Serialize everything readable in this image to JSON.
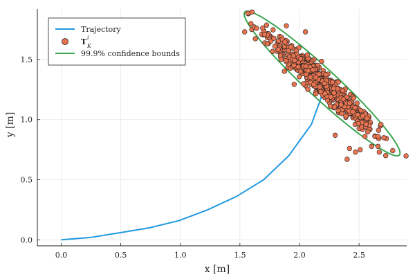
{
  "chart_data": {
    "type": "scatter",
    "xlabel": "x [m]",
    "ylabel": "y [m]",
    "xlim": [
      -0.2,
      2.9
    ],
    "ylim": [
      -0.05,
      1.92
    ],
    "xticks": [
      "0.0",
      "0.5",
      "1.0",
      "1.5",
      "2.0",
      "2.5"
    ],
    "yticks": [
      "0.0",
      "0.5",
      "1.0",
      "1.5"
    ],
    "grid": true,
    "legend_position": "top-left",
    "colors": {
      "trajectory": "#1f98e0",
      "samples": "#e8734f",
      "bounds": "#3aa64f"
    },
    "legend": [
      {
        "label": "Trajectory"
      },
      {
        "label": "T",
        "superscript": "i",
        "subscript": "K"
      },
      {
        "label": "99.9% confidence bounds"
      }
    ],
    "trajectory": {
      "x": [
        0.0,
        0.25,
        0.5,
        0.74,
        0.99,
        1.23,
        1.47,
        1.7,
        1.91,
        2.1,
        2.17,
        2.22
      ],
      "y": [
        0.0,
        0.02,
        0.06,
        0.1,
        0.16,
        0.25,
        0.36,
        0.5,
        0.7,
        0.96,
        1.15,
        1.3
      ]
    },
    "confidence_ellipse": {
      "center": [
        2.19,
        1.3
      ],
      "semi_axes": [
        0.88,
        0.122
      ],
      "angle_deg": -42.5
    },
    "samples": {
      "count": 700,
      "mean": [
        2.19,
        1.3
      ],
      "extreme_points": [
        [
          1.54,
          1.73
        ],
        [
          1.6,
          1.75
        ],
        [
          1.62,
          1.77
        ],
        [
          1.64,
          1.76
        ],
        [
          1.73,
          1.63
        ],
        [
          1.89,
          1.78
        ],
        [
          2.05,
          1.73
        ],
        [
          2.47,
          0.73
        ],
        [
          2.42,
          0.76
        ],
        [
          2.51,
          0.75
        ],
        [
          2.4,
          0.67
        ],
        [
          2.55,
          0.86
        ],
        [
          2.67,
          0.73
        ],
        [
          2.66,
          0.86
        ],
        [
          2.3,
          0.87
        ]
      ]
    }
  }
}
